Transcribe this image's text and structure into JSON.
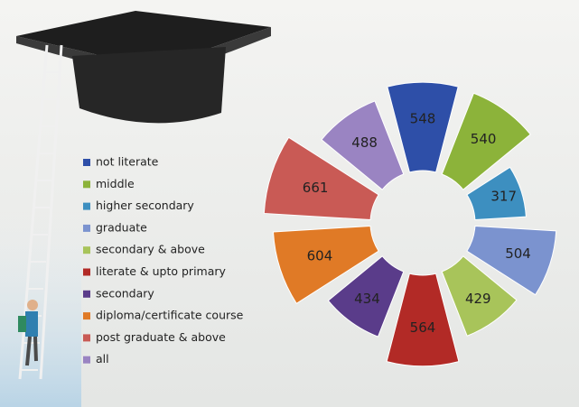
{
  "chart_data": {
    "type": "polar",
    "categories": [
      "not literate",
      "middle",
      "higher secondary",
      "graduate",
      "secondary & above",
      "literate & upto primary",
      "secondary",
      "diploma/certificate course",
      "post graduate & above",
      "all"
    ],
    "values": [
      548,
      540,
      317,
      504,
      429,
      564,
      434,
      604,
      661,
      488
    ],
    "colors": [
      "#2e4fa8",
      "#8cb33a",
      "#3d8fc0",
      "#7b93cf",
      "#a8c45a",
      "#b22a26",
      "#5a3c8a",
      "#e07a26",
      "#c95a55",
      "#9a84c2"
    ],
    "legend": "left"
  }
}
